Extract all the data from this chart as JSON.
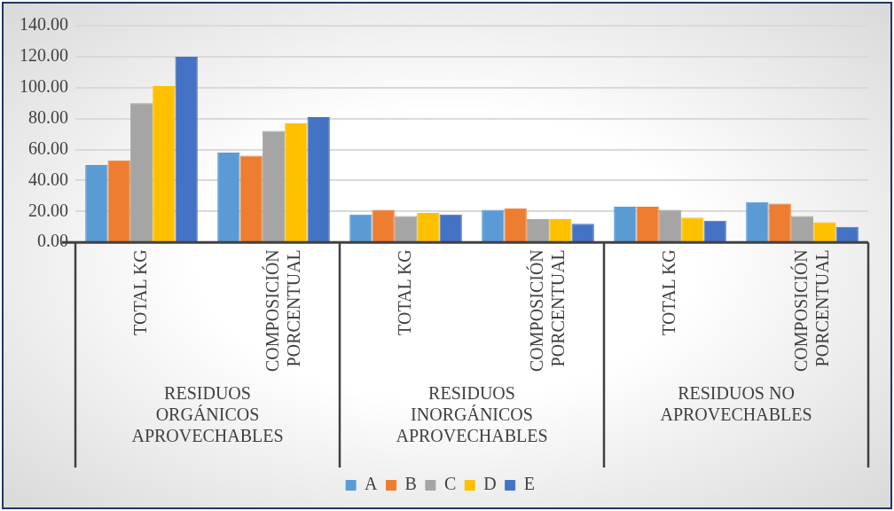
{
  "chart_data": {
    "type": "bar",
    "categories": [
      "TOTAL KG",
      "COMPOSICIÓN PORCENTUAL",
      "TOTAL KG",
      "COMPOSICIÓN PORCENTUAL",
      "TOTAL KG",
      "COMPOSICIÓN PORCENTUAL"
    ],
    "annotations": [
      "RESIDUOS ORGÁNICOS APROVECHABLES",
      "RESIDUOS INORGÁNICOS APROVECHABLES",
      "RESIDUOS NO APROVECHABLES"
    ],
    "series": [
      {
        "name": "A",
        "color": "#5b9bd5",
        "values": [
          50,
          58,
          18,
          21,
          23,
          26
        ]
      },
      {
        "name": "B",
        "color": "#ed7d31",
        "values": [
          53,
          56,
          21,
          22,
          23,
          25
        ]
      },
      {
        "name": "C",
        "color": "#a5a5a5",
        "values": [
          90,
          72,
          17,
          15,
          21,
          17
        ]
      },
      {
        "name": "D",
        "color": "#ffc000",
        "values": [
          101,
          77,
          19,
          15,
          16,
          13
        ]
      },
      {
        "name": "E",
        "color": "#4472c4",
        "values": [
          120,
          81,
          18,
          12,
          14,
          10
        ]
      }
    ],
    "ylim": [
      0,
      140
    ],
    "yticks": [
      {
        "value": 0,
        "label": "0.00"
      },
      {
        "value": 20,
        "label": "20.00"
      },
      {
        "value": 40,
        "label": "40.00"
      },
      {
        "value": 60,
        "label": "60.00"
      },
      {
        "value": 80,
        "label": "80.00"
      },
      {
        "value": 100,
        "label": "100.00"
      },
      {
        "value": 120,
        "label": "120.00"
      },
      {
        "value": 140,
        "label": "140.00"
      }
    ],
    "grid": "y",
    "legend": "bottom"
  }
}
